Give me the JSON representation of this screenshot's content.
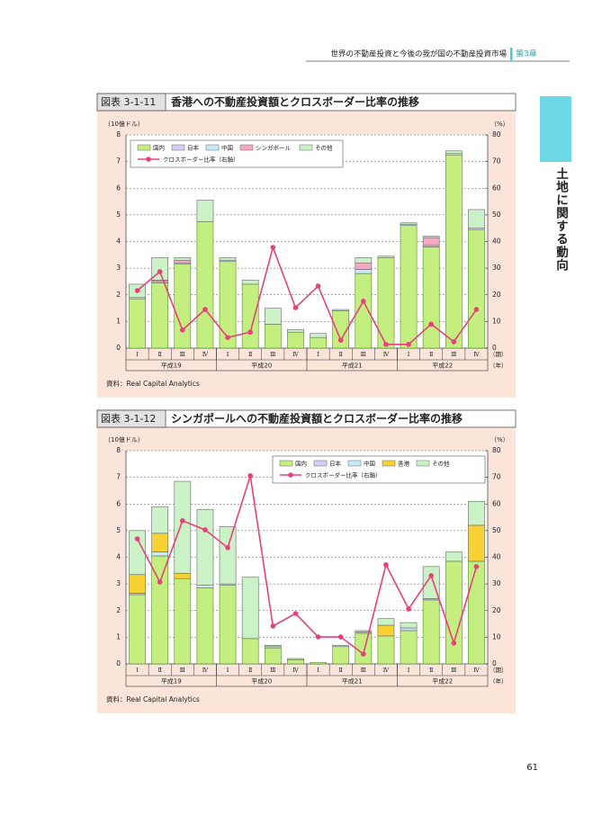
{
  "header": {
    "section": "世界の不動産投資と今後の我が国の不動産投資市場",
    "chapter": "第3章"
  },
  "side_tab": "土地に関する動向",
  "page_number": "61",
  "chart_data": [
    {
      "figure_number": "図表 3-1-11",
      "title": "香港への不動産投資額とクロスボーダー比率の推移",
      "type": "bar",
      "stacked": true,
      "y_label": "（10億ドル）",
      "y2_label": "（%）",
      "x_label": "（期）",
      "x_group_label": "（年）",
      "categories": [
        "Ⅰ",
        "Ⅱ",
        "Ⅲ",
        "Ⅳ",
        "Ⅰ",
        "Ⅱ",
        "Ⅲ",
        "Ⅳ",
        "Ⅰ",
        "Ⅱ",
        "Ⅲ",
        "Ⅳ",
        "Ⅰ",
        "Ⅱ",
        "Ⅲ",
        "Ⅳ"
      ],
      "groups": [
        "平成19",
        "平成20",
        "平成21",
        "平成22"
      ],
      "ylim": [
        0,
        8
      ],
      "yticks": [
        0,
        1,
        2,
        3,
        4,
        5,
        6,
        7,
        8
      ],
      "y2lim": [
        0,
        80
      ],
      "y2ticks": [
        0,
        10,
        20,
        30,
        40,
        50,
        60,
        70,
        80
      ],
      "grid": true,
      "legend": "upper left",
      "series": [
        {
          "name": "国内",
          "color": "#c4ee80",
          "values": [
            1.85,
            2.45,
            3.15,
            4.75,
            3.25,
            2.4,
            0.9,
            0.6,
            0.4,
            1.4,
            2.8,
            3.4,
            4.6,
            3.8,
            7.25,
            4.45
          ]
        },
        {
          "name": "日本",
          "color": "#d9ccf2",
          "values": [
            0.05,
            0,
            0.05,
            0,
            0,
            0,
            0,
            0,
            0,
            0,
            0,
            0,
            0,
            0,
            0,
            0.05
          ]
        },
        {
          "name": "中国",
          "color": "#c9e9f8",
          "values": [
            0,
            0.05,
            0,
            0,
            0.05,
            0,
            0,
            0,
            0,
            0.05,
            0.15,
            0,
            0.05,
            0.05,
            0.05,
            0
          ]
        },
        {
          "name": "シンガポール",
          "color": "#f4a9c2",
          "values": [
            0,
            0.05,
            0.1,
            0,
            0,
            0,
            0,
            0,
            0,
            0,
            0.25,
            0,
            0,
            0.3,
            0,
            0
          ]
        },
        {
          "name": "その他",
          "color": "#cbf2c6",
          "values": [
            0.5,
            0.85,
            0.1,
            0.8,
            0.1,
            0.15,
            0.6,
            0.1,
            0.15,
            0,
            0.2,
            0.05,
            0.05,
            0.05,
            0.1,
            0.7
          ]
        },
        {
          "name": "クロスボーダー比率（右軸）",
          "type": "line",
          "axis": "y2",
          "color": "#e8407a",
          "values": [
            21.6,
            28.7,
            6.8,
            14.5,
            4,
            6,
            37.8,
            15.2,
            23.3,
            3,
            17.6,
            1.4,
            1.4,
            9,
            2.4,
            14.5
          ]
        }
      ],
      "source": "資料：Real Capital Analytics"
    },
    {
      "figure_number": "図表 3-1-12",
      "title": "シンガポールへの不動産投資額とクロスボーダー比率の推移",
      "type": "bar",
      "stacked": true,
      "y_label": "（10億ドル）",
      "y2_label": "（%）",
      "x_label": "（期）",
      "x_group_label": "（年）",
      "categories": [
        "Ⅰ",
        "Ⅱ",
        "Ⅲ",
        "Ⅳ",
        "Ⅰ",
        "Ⅱ",
        "Ⅲ",
        "Ⅳ",
        "Ⅰ",
        "Ⅱ",
        "Ⅲ",
        "Ⅳ",
        "Ⅰ",
        "Ⅱ",
        "Ⅲ",
        "Ⅳ"
      ],
      "groups": [
        "平成19",
        "平成20",
        "平成21",
        "平成22"
      ],
      "ylim": [
        0,
        8
      ],
      "yticks": [
        0,
        1,
        2,
        3,
        4,
        5,
        6,
        7,
        8
      ],
      "y2lim": [
        0,
        80
      ],
      "y2ticks": [
        0,
        10,
        20,
        30,
        40,
        50,
        60,
        70,
        80
      ],
      "grid": true,
      "legend": "upper right",
      "series": [
        {
          "name": "国内",
          "color": "#c4ee80",
          "values": [
            2.6,
            4.05,
            3.2,
            2.85,
            2.95,
            0.95,
            0.6,
            0.15,
            0.05,
            0.65,
            1.15,
            1.05,
            1.25,
            2.4,
            3.85,
            3.85
          ]
        },
        {
          "name": "日本",
          "color": "#d9ccf2",
          "values": [
            0.05,
            0,
            0,
            0,
            0,
            0,
            0.05,
            0,
            0,
            0,
            0.05,
            0,
            0,
            0.05,
            0,
            0
          ]
        },
        {
          "name": "中国",
          "color": "#c9e9f8",
          "values": [
            0,
            0.15,
            0,
            0.1,
            0.05,
            0,
            0,
            0,
            0,
            0,
            0,
            0,
            0.1,
            0,
            0,
            0
          ]
        },
        {
          "name": "香港",
          "color": "#f8d232",
          "values": [
            0.7,
            0.7,
            0.2,
            0,
            0,
            0,
            0,
            0,
            0,
            0,
            0,
            0.4,
            0,
            0,
            0,
            1.35
          ]
        },
        {
          "name": "その他",
          "color": "#cbf2c6",
          "values": [
            1.65,
            1.0,
            3.45,
            2.85,
            2.15,
            2.3,
            0.05,
            0.05,
            0,
            0.05,
            0.05,
            0.25,
            0.2,
            1.2,
            0.35,
            0.9
          ]
        },
        {
          "name": "クロスボーダー比率（右軸）",
          "type": "line",
          "axis": "y2",
          "color": "#e8407a",
          "values": [
            46.9,
            30.7,
            53.7,
            50.3,
            43.6,
            70.6,
            14.2,
            18.9,
            10.1,
            10.1,
            3.7,
            37.2,
            20.6,
            33.1,
            7.8,
            36.5
          ]
        }
      ],
      "source": "資料：Real Capital Analytics"
    }
  ]
}
